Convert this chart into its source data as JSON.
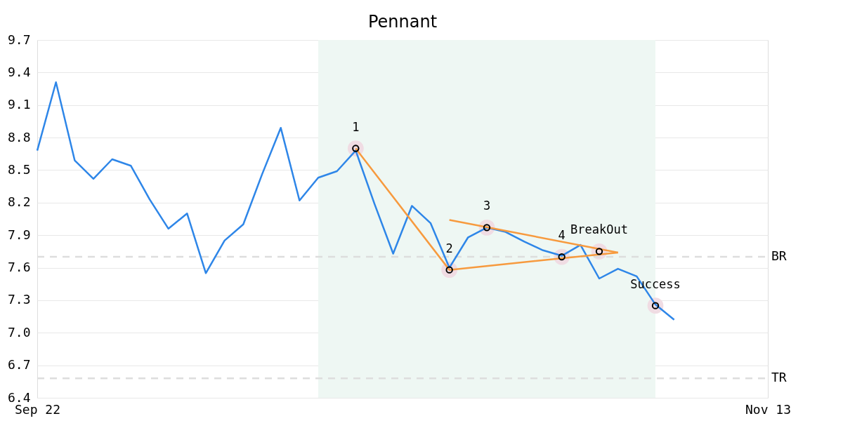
{
  "chart_data": {
    "type": "line",
    "title": "Pennant",
    "categories": [
      "Sep 22",
      null,
      null,
      null,
      null,
      null,
      null,
      null,
      null,
      null,
      null,
      null,
      null,
      null,
      null,
      null,
      null,
      null,
      null,
      null,
      null,
      null,
      null,
      null,
      null,
      null,
      null,
      null,
      null,
      null,
      null,
      null,
      null,
      null,
      null,
      null,
      null,
      null,
      null,
      "Nov 13"
    ],
    "ylim": [
      6.4,
      9.7
    ],
    "yticks": [
      6.4,
      6.7,
      {
        "value": 7,
        "label": "7.0"
      },
      7.3,
      7.6,
      7.9,
      8.2,
      8.5,
      8.8,
      9.1,
      9.4,
      9.7
    ],
    "grid": "y",
    "series": [
      {
        "color": "#2e86e8",
        "values": [
          8.68,
          9.31,
          8.59,
          8.42,
          8.6,
          8.54,
          8.23,
          7.96,
          8.1,
          7.55,
          7.85,
          8.0,
          8.46,
          8.89,
          8.22,
          8.43,
          8.49,
          8.68,
          8.19,
          7.73,
          8.17,
          8.01,
          7.6,
          7.88,
          7.97,
          7.93,
          7.84,
          7.76,
          7.71,
          7.81,
          7.5,
          7.59,
          7.52,
          7.26,
          7.12,
          null,
          null,
          null,
          null,
          null
        ]
      },
      {
        "type": "line",
        "color": "#f79a3e",
        "values": [
          null,
          null,
          null,
          null,
          null,
          null,
          null,
          null,
          null,
          null,
          null,
          null,
          null,
          null,
          null,
          null,
          null,
          8.7,
          null,
          null,
          null,
          null,
          7.58,
          null,
          null,
          null,
          null,
          null,
          null,
          null,
          null,
          7.74,
          null,
          null,
          null,
          null,
          null,
          null,
          null,
          null
        ]
      },
      {
        "type": "line",
        "color": "#f79a3e",
        "values": [
          null,
          null,
          null,
          null,
          null,
          null,
          null,
          null,
          null,
          null,
          null,
          null,
          null,
          null,
          null,
          null,
          null,
          null,
          null,
          null,
          null,
          null,
          8.04,
          null,
          null,
          null,
          null,
          null,
          null,
          null,
          null,
          7.74,
          null,
          null,
          null,
          null,
          null,
          null,
          null,
          null
        ]
      },
      {
        "type": "scatter",
        "color": "#000000",
        "values": [
          null,
          null,
          null,
          null,
          null,
          null,
          null,
          null,
          null,
          null,
          null,
          null,
          null,
          null,
          null,
          null,
          null,
          8.7,
          null,
          null,
          null,
          null,
          7.58,
          null,
          7.97,
          null,
          null,
          null,
          7.7,
          null,
          7.75,
          null,
          null,
          7.25,
          null,
          null,
          null,
          null,
          null,
          null
        ]
      }
    ],
    "annotations": [
      {
        "text": "1",
        "y": 8.7
      },
      {
        "text": "2",
        "y": 7.58
      },
      {
        "text": "3",
        "y": 7.97
      },
      {
        "text": "4",
        "y": 7.7
      },
      {
        "text": "BreakOut",
        "y": 7.75
      },
      {
        "text": "Success",
        "y": 7.25
      }
    ],
    "ref_lines": [
      {
        "axis": "y",
        "value": 7.7,
        "label": "BR",
        "line_style": "dashed",
        "color": "#dddddd"
      },
      {
        "axis": "y",
        "value": 6.58,
        "label": "TR",
        "line_style": "dashed",
        "color": "#dddddd"
      }
    ]
  }
}
